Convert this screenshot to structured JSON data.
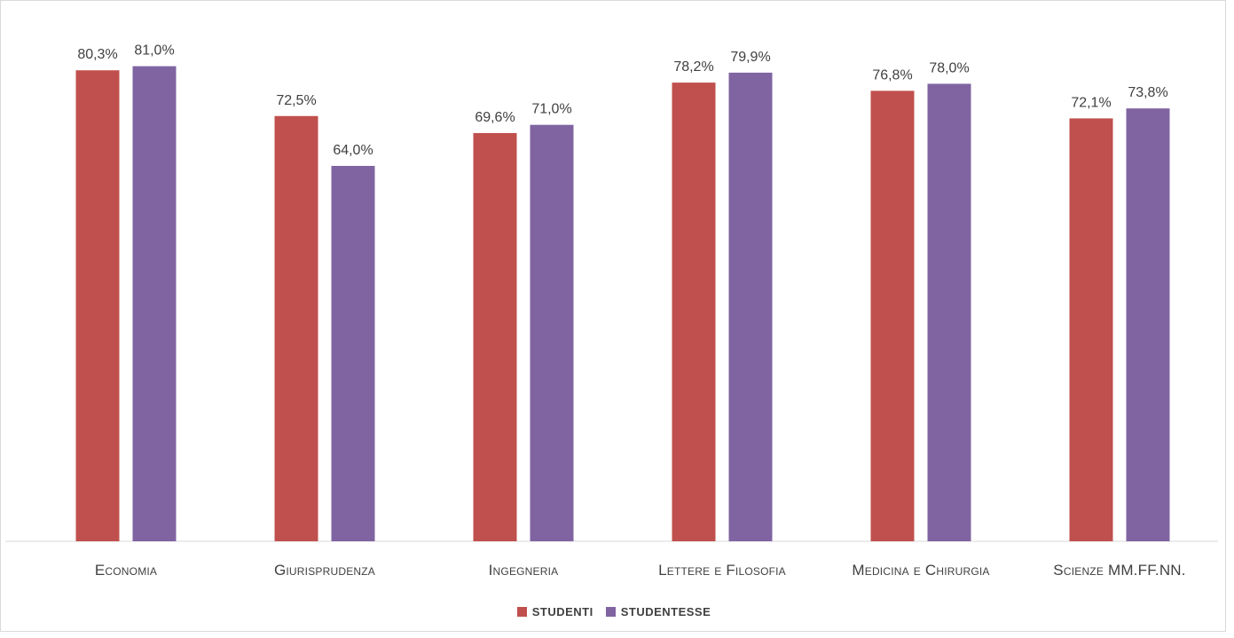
{
  "chart_data": {
    "type": "bar",
    "categories": [
      "Economia",
      "Giurisprudenza",
      "Ingegneria",
      "Lettere e Filosofia",
      "Medicina e Chirurgia",
      "Scienze MM.FF.NN."
    ],
    "series": [
      {
        "name": "STUDENTI",
        "color": "#c0504d",
        "values": [
          80.3,
          72.5,
          69.6,
          78.2,
          76.8,
          72.1
        ],
        "labels": [
          "80,3%",
          "72,5%",
          "69,6%",
          "78,2%",
          "76,8%",
          "72,1%"
        ]
      },
      {
        "name": "STUDENTESSE",
        "color": "#8064a2",
        "values": [
          81.0,
          64.0,
          71.0,
          79.9,
          78.0,
          73.8
        ],
        "labels": [
          "81,0%",
          "64,0%",
          "71,0%",
          "79,9%",
          "78,0%",
          "73,8%"
        ]
      }
    ],
    "ylim": [
      0,
      85
    ],
    "grid": false,
    "legend_position": "bottom"
  }
}
